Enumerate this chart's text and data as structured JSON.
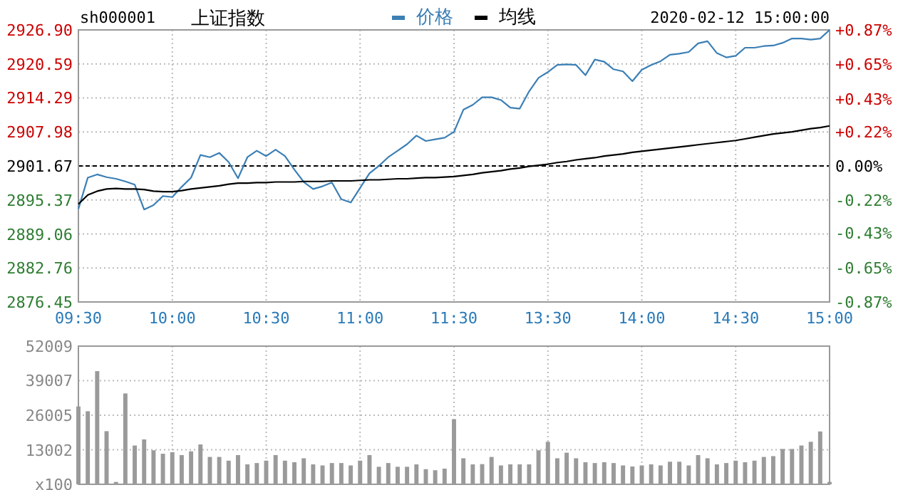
{
  "chart_data": [
    {
      "type": "line",
      "title": "上证指数",
      "annotations": [
        "sh000001",
        "2020-02-12 15:00:00"
      ],
      "legend": "top",
      "grid": true,
      "categories": [
        "09:30",
        null,
        null,
        null,
        null,
        null,
        null,
        null,
        null,
        null,
        "10:00",
        null,
        null,
        null,
        null,
        null,
        null,
        null,
        null,
        null,
        "10:30",
        null,
        null,
        null,
        null,
        null,
        null,
        null,
        null,
        null,
        "11:00",
        null,
        null,
        null,
        null,
        null,
        null,
        null,
        null,
        null,
        "11:30",
        null,
        null,
        null,
        null,
        null,
        null,
        null,
        null,
        null,
        "13:30",
        null,
        null,
        null,
        null,
        null,
        null,
        null,
        null,
        null,
        "14:00",
        null,
        null,
        null,
        null,
        null,
        null,
        null,
        null,
        null,
        "14:30",
        null,
        null,
        null,
        null,
        null,
        null,
        null,
        null,
        null,
        "15:00"
      ],
      "ylim": [
        2876.45,
        2926.9
      ],
      "yticks": [
        {
          "value": 2926.9,
          "label": "2926.90"
        },
        {
          "value": 2920.59,
          "label": "2920.59"
        },
        {
          "value": 2914.29,
          "label": "2914.29"
        },
        {
          "value": 2907.98,
          "label": "2907.98"
        },
        {
          "value": 2901.67,
          "label": "2901.67"
        },
        {
          "value": 2895.37,
          "label": "2895.37"
        },
        {
          "value": 2889.06,
          "label": "2889.06"
        },
        {
          "value": 2882.76,
          "label": "2882.76"
        },
        {
          "value": 2876.45,
          "label": "2876.45"
        }
      ],
      "y2lim": [
        -0.87,
        0.87
      ],
      "y2ticks": [
        {
          "value": 0.87,
          "label": "+0.87%"
        },
        {
          "value": 0.65,
          "label": "+0.65%"
        },
        {
          "value": 0.43,
          "label": "+0.43%"
        },
        {
          "value": 0.22,
          "label": "+0.22%"
        },
        {
          "value": 0,
          "label": "0.00%"
        },
        {
          "value": -0.22,
          "label": "-0.22%"
        },
        {
          "value": -0.43,
          "label": "-0.43%"
        },
        {
          "value": -0.65,
          "label": "-0.65%"
        },
        {
          "value": -0.87,
          "label": "-0.87%"
        }
      ],
      "ref_lines": [
        {
          "axis": "y",
          "value": 2901.67,
          "color": "#000000",
          "line_style": "dashed"
        }
      ],
      "series": [
        {
          "name": "价格",
          "color": "#3b7fb5",
          "values": [
            2893.7,
            2899.5,
            2900.1,
            2899.6,
            2899.3,
            2898.8,
            2898.2,
            2893.6,
            2894.4,
            2896.1,
            2895.9,
            2897.8,
            2899.5,
            2903.7,
            2903.3,
            2904.1,
            2902.4,
            2899.4,
            2903.3,
            2904.5,
            2903.5,
            2904.7,
            2903.5,
            2901.0,
            2898.7,
            2897.4,
            2897.9,
            2898.6,
            2895.5,
            2894.9,
            2897.6,
            2900.3,
            2901.7,
            2903.3,
            2904.5,
            2905.7,
            2907.3,
            2906.3,
            2906.6,
            2906.9,
            2908.0,
            2912.1,
            2913.0,
            2914.4,
            2914.4,
            2913.9,
            2912.5,
            2912.3,
            2915.5,
            2918.0,
            2919.1,
            2920.4,
            2920.5,
            2920.4,
            2918.5,
            2921.4,
            2921.0,
            2919.6,
            2919.2,
            2917.4,
            2919.5,
            2920.4,
            2921.1,
            2922.3,
            2922.5,
            2922.8,
            2924.4,
            2924.8,
            2922.6,
            2921.8,
            2922.1,
            2923.6,
            2923.6,
            2923.9,
            2924.0,
            2924.5,
            2925.3,
            2925.3,
            2925.1,
            2925.3,
            2926.9
          ]
        },
        {
          "name": "均线",
          "color": "#000000",
          "values": [
            2894.6,
            2896.3,
            2897.0,
            2897.4,
            2897.5,
            2897.4,
            2897.4,
            2897.3,
            2897.0,
            2896.9,
            2896.9,
            2897.1,
            2897.4,
            2897.6,
            2897.8,
            2898.0,
            2898.3,
            2898.5,
            2898.5,
            2898.6,
            2898.6,
            2898.7,
            2898.7,
            2898.7,
            2898.8,
            2898.8,
            2898.8,
            2898.9,
            2898.9,
            2898.9,
            2899.0,
            2899.1,
            2899.1,
            2899.2,
            2899.3,
            2899.3,
            2899.4,
            2899.5,
            2899.5,
            2899.6,
            2899.7,
            2899.9,
            2900.1,
            2900.4,
            2900.6,
            2900.8,
            2901.1,
            2901.3,
            2901.6,
            2901.8,
            2902.0,
            2902.3,
            2902.5,
            2902.8,
            2903.0,
            2903.2,
            2903.5,
            2903.7,
            2903.9,
            2904.2,
            2904.4,
            2904.6,
            2904.8,
            2905.0,
            2905.2,
            2905.4,
            2905.6,
            2905.8,
            2906.0,
            2906.2,
            2906.4,
            2906.7,
            2907.0,
            2907.3,
            2907.6,
            2907.8,
            2908.0,
            2908.3,
            2908.6,
            2908.8,
            2909.1
          ]
        }
      ]
    },
    {
      "type": "bar",
      "grid": true,
      "tick_labels": "y",
      "color": "#9a9a9a",
      "categories": [
        null,
        null,
        null,
        null,
        null,
        null,
        null,
        null,
        null,
        null,
        null,
        null,
        null,
        null,
        null,
        null,
        null,
        null,
        null,
        null,
        null,
        null,
        null,
        null,
        null,
        null,
        null,
        null,
        null,
        null,
        null,
        null,
        null,
        null,
        null,
        null,
        null,
        null,
        null,
        null,
        null,
        null,
        null,
        null,
        null,
        null,
        null,
        null,
        null,
        null,
        null,
        null,
        null,
        null,
        null,
        null,
        null,
        null,
        null,
        null,
        null,
        null,
        null,
        null,
        null,
        null,
        null,
        null,
        null,
        null,
        null,
        null,
        null,
        null,
        null,
        null,
        null,
        null,
        null,
        null,
        null
      ],
      "ylim": [
        0,
        52009
      ],
      "yticks": [
        {
          "value": 52009,
          "label": "52009"
        },
        {
          "value": 39007,
          "label": "39007"
        },
        {
          "value": 26005,
          "label": "26005"
        },
        {
          "value": 13002,
          "label": "13002"
        },
        {
          "value": 0,
          "label": "x100"
        }
      ],
      "values": [
        29300,
        27500,
        42600,
        20000,
        900,
        34200,
        14600,
        16900,
        12800,
        11500,
        12100,
        11000,
        12400,
        15000,
        10300,
        10300,
        8900,
        11000,
        7500,
        8000,
        8900,
        11000,
        8900,
        8300,
        9800,
        7500,
        7100,
        8000,
        8000,
        7100,
        8900,
        11000,
        6600,
        8000,
        6600,
        6600,
        7500,
        5700,
        5300,
        5900,
        24500,
        9800,
        7500,
        7600,
        10300,
        7100,
        7500,
        7500,
        7500,
        12800,
        16000,
        9800,
        11900,
        9800,
        8300,
        8000,
        8300,
        8000,
        7100,
        6700,
        7100,
        7500,
        7100,
        8500,
        8500,
        7100,
        11000,
        9800,
        7500,
        8000,
        8900,
        8300,
        8900,
        10300,
        10600,
        13300,
        13300,
        14600,
        16000,
        19900,
        900
      ]
    }
  ]
}
